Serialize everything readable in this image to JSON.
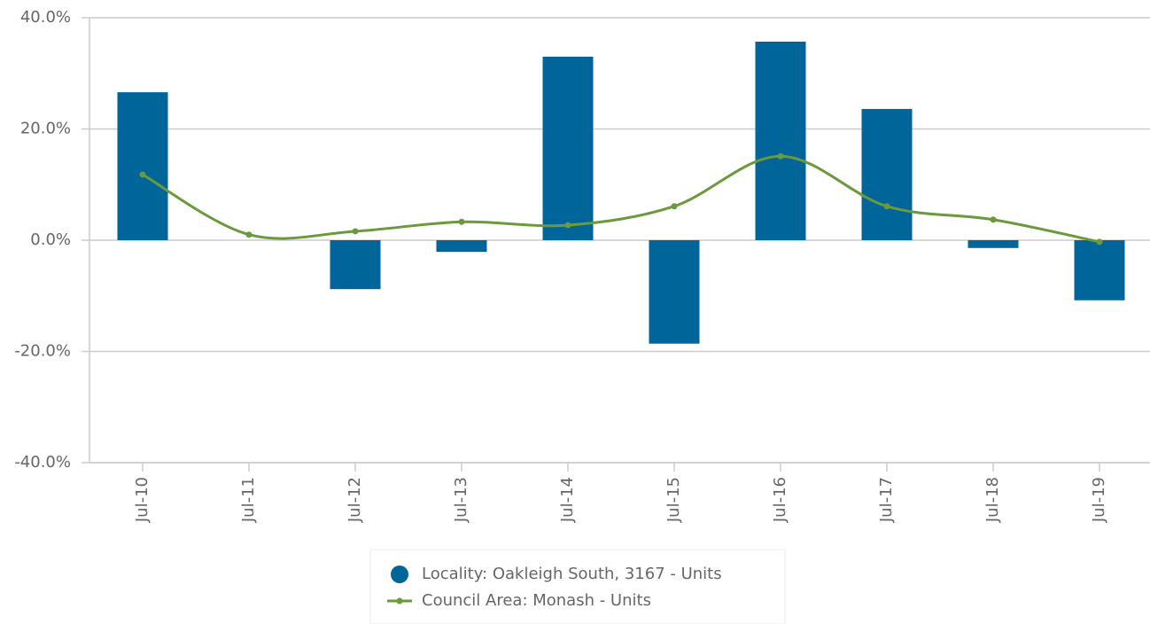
{
  "chart_data": {
    "type": "bar_line",
    "categories": [
      "Jul-10",
      "Jul-11",
      "Jul-12",
      "Jul-13",
      "Jul-14",
      "Jul-15",
      "Jul-16",
      "Jul-17",
      "Jul-18",
      "Jul-19"
    ],
    "series": [
      {
        "name": "Locality: Oakleigh South, 3167 - Units",
        "type": "bar",
        "color": "#006699",
        "values": [
          26.6,
          0,
          -8.8,
          -2.1,
          33.0,
          -18.6,
          35.7,
          23.6,
          -1.4,
          -10.8
        ]
      },
      {
        "name": "Council Area: Monash - Units",
        "type": "line",
        "color": "#6a9a3a",
        "values": [
          11.8,
          1.0,
          1.6,
          3.3,
          2.7,
          6.1,
          15.1,
          6.1,
          3.7,
          -0.3
        ]
      }
    ],
    "ylim": [
      -40,
      40
    ],
    "yticks": [
      {
        "value": -40,
        "label": "-40.0%"
      },
      {
        "value": -20,
        "label": "-20.0%"
      },
      {
        "value": 0,
        "label": "0.0%"
      },
      {
        "value": 20,
        "label": "20.0%"
      },
      {
        "value": 40,
        "label": "40.0%"
      }
    ],
    "grid": true,
    "legend": "bottom"
  }
}
